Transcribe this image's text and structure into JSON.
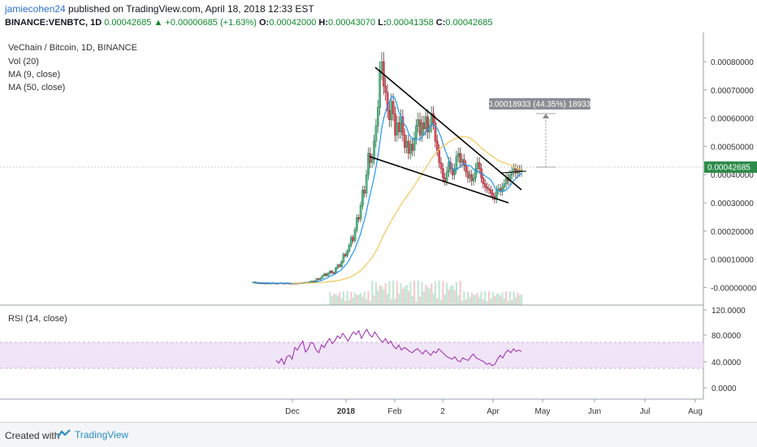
{
  "header": {
    "user": "jamiecohen24",
    "published_text": " published on TradingView.com, April 18, 2018 12:33 EST",
    "symbol": "BINANCE:VENBTC, 1D",
    "last": "0.00042685",
    "change": "+0.00000685 (+1.63%)",
    "o_label": "O:",
    "o_value": "0.00042000",
    "h_label": "H:",
    "h_value": "0.00043070",
    "l_label": "L:",
    "l_value": "0.00041358",
    "c_label": "C:",
    "c_value": "0.00042685"
  },
  "legend": {
    "title": "VeChain / Bitcoin, 1D, BINANCE",
    "vol": "Vol (20)",
    "ma9": "MA (9, close)",
    "ma50": "MA (50, close)",
    "rsi": "RSI (14, close)"
  },
  "measure_label": "0.00018933 (44.35%) 18933",
  "price_badge": "0.00042685",
  "footer": {
    "created": "Created with",
    "brand": "TradingView"
  },
  "colors": {
    "up": "#53b987",
    "down": "#eb4d5c",
    "ma9": "#2196f3",
    "ma50": "#f4c65a",
    "rsi": "#9c27b0",
    "rsi_band": "#f0e4f7",
    "badge": "#2d8c4a"
  },
  "chart_data": {
    "type": "candlestick",
    "price_axis": {
      "ticks": [
        "0.00080000",
        "0.00070000",
        "0.00060000",
        "0.00050000",
        "0.00040000",
        "0.00030000",
        "0.00020000",
        "0.00010000",
        "-0.00000000"
      ],
      "range": [
        -3e-05,
        0.00088
      ]
    },
    "rsi_axis": {
      "ticks": [
        "120.0000",
        "80.0000",
        "40.0000",
        "0.0000"
      ],
      "range": [
        -15,
        125
      ],
      "band": [
        30,
        70
      ]
    },
    "time_axis": {
      "ticks": [
        "Dec",
        "2018",
        "Feb",
        "2",
        "Apr",
        "May",
        "Jun",
        "Jul",
        "Aug"
      ]
    },
    "closes": [
      5.9e-05,
      5.6e-05,
      5.7e-05,
      5.5e-05,
      5.6e-05,
      5.55e-05,
      5.5e-05,
      5.6e-05,
      5.45e-05,
      5.55e-05,
      5.6e-05,
      5.5e-05,
      5.45e-05,
      5.55e-05,
      5.65e-05,
      5.5e-05,
      5.45e-05,
      5.6e-05,
      5.5e-05,
      5.45e-05,
      5.5e-05,
      5.4e-05,
      5.55e-05,
      5.5e-05,
      5.65e-05,
      5.6e-05,
      5.7e-05,
      5.8e-05,
      5.75e-05,
      5.9e-05,
      6.2e-05,
      6e-05,
      6.3e-05,
      7e-05,
      6.8e-05,
      7.2e-05,
      8e-05,
      8.6e-05,
      8e-05,
      8.8e-05,
      9.5e-05,
      9e-05,
      8.8e-05,
      0.000105,
      0.000115,
      0.00011,
      0.000125,
      0.00015,
      0.000145,
      0.00016,
      0.00018,
      0.000205,
      0.000195,
      0.00023,
      0.00027,
      0.000265,
      0.00031,
      0.00036,
      0.00035,
      0.00041,
      0.00048,
      0.00045,
      0.00046,
      0.00052,
      0.00057,
      0.00063,
      0.00075,
      0.00078,
      0.0007,
      0.00068,
      0.00062,
      0.00059,
      0.00065,
      0.00061,
      0.00054,
      0.00058,
      0.00055,
      0.0006,
      0.00054,
      0.0005,
      0.00052,
      0.00048,
      0.00051,
      0.00049,
      0.00053,
      0.00057,
      0.00059,
      0.00054,
      0.00058,
      0.00056,
      0.0006,
      0.00055,
      0.00057,
      0.00061,
      0.00058,
      0.00052,
      0.00049,
      0.00045,
      0.00043,
      0.0004,
      0.00039,
      0.00042,
      0.00045,
      0.00043,
      0.00041,
      0.00043,
      0.00047,
      0.00048,
      0.00045,
      0.00046,
      0.00044,
      0.00042,
      0.0004,
      0.00041,
      0.00039,
      0.0004,
      0.00043,
      0.00045,
      0.00043,
      0.0004,
      0.00038,
      0.00037,
      0.000365,
      0.00036,
      0.00035,
      0.00034,
      0.00033,
      0.00036,
      0.000365,
      0.000355,
      0.00037,
      0.00038,
      0.0004,
      0.00039,
      0.00041,
      0.00042,
      0.00043,
      0.000415,
      0.000425,
      0.00042,
      0.0004268
    ],
    "rsi": [
      42,
      38,
      45,
      36,
      48,
      50,
      44,
      62,
      58,
      66,
      72,
      55,
      60,
      70,
      68,
      58,
      54,
      66,
      62,
      70,
      76,
      68,
      72,
      80,
      76,
      84,
      78,
      72,
      80,
      86,
      82,
      88,
      76,
      84,
      90,
      82,
      78,
      86,
      80,
      74,
      70,
      76,
      68,
      72,
      64,
      60,
      66,
      58,
      62,
      60,
      56,
      54,
      58,
      60,
      56,
      52,
      58,
      54,
      50,
      56,
      54,
      60,
      56,
      52,
      48,
      46,
      44,
      48,
      42,
      40,
      46,
      44,
      42,
      48,
      52,
      46,
      44,
      42,
      40,
      36,
      38,
      34,
      36,
      44,
      50,
      46,
      54,
      58,
      54,
      60,
      56,
      58,
      56
    ]
  }
}
